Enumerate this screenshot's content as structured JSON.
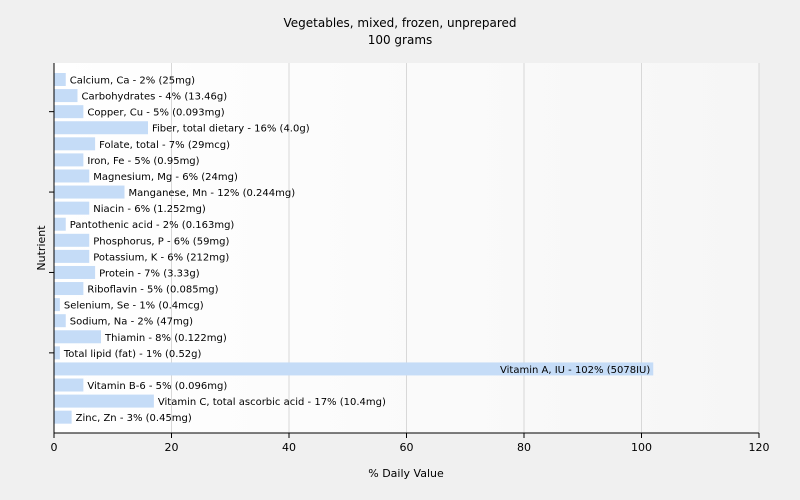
{
  "chart_data": {
    "type": "bar",
    "orientation": "horizontal",
    "title": "Vegetables, mixed, frozen, unprepared",
    "subtitle": "100 grams",
    "xlabel": "% Daily Value",
    "ylabel": "Nutrient",
    "xlim": [
      0,
      120
    ],
    "xticks": [
      0,
      20,
      40,
      60,
      80,
      100,
      120
    ],
    "grid": true,
    "colors": {
      "bar": "#c5dcf7",
      "grid": "#d8d8d8",
      "axis": "#000000",
      "plot_bg": "#ffffff"
    },
    "categories": [
      "Calcium, Ca",
      "Carbohydrates",
      "Copper, Cu",
      "Fiber, total dietary",
      "Folate, total",
      "Iron, Fe",
      "Magnesium, Mg",
      "Manganese, Mn",
      "Niacin",
      "Pantothenic acid",
      "Phosphorus, P",
      "Potassium, K",
      "Protein",
      "Riboflavin",
      "Selenium, Se",
      "Sodium, Na",
      "Thiamin",
      "Total lipid (fat)",
      "Vitamin A, IU",
      "Vitamin B-6",
      "Vitamin C, total ascorbic acid",
      "Zinc, Zn"
    ],
    "values": [
      2,
      4,
      5,
      16,
      7,
      5,
      6,
      12,
      6,
      2,
      6,
      6,
      7,
      5,
      1,
      2,
      8,
      1,
      102,
      5,
      17,
      3
    ],
    "labels": [
      "Calcium, Ca - 2% (25mg)",
      "Carbohydrates - 4% (13.46g)",
      "Copper, Cu - 5% (0.093mg)",
      "Fiber, total dietary - 16% (4.0g)",
      "Folate, total - 7% (29mcg)",
      "Iron, Fe - 5% (0.95mg)",
      "Magnesium, Mg - 6% (24mg)",
      "Manganese, Mn - 12% (0.244mg)",
      "Niacin - 6% (1.252mg)",
      "Pantothenic acid - 2% (0.163mg)",
      "Phosphorus, P - 6% (59mg)",
      "Potassium, K - 6% (212mg)",
      "Protein - 7% (3.33g)",
      "Riboflavin - 5% (0.085mg)",
      "Selenium, Se - 1% (0.4mcg)",
      "Sodium, Na - 2% (47mg)",
      "Thiamin - 8% (0.122mg)",
      "Total lipid (fat) - 1% (0.52g)",
      "Vitamin A, IU - 102% (5078IU)",
      "Vitamin B-6 - 5% (0.096mg)",
      "Vitamin C, total ascorbic acid - 17% (10.4mg)",
      "Zinc, Zn - 3% (0.45mg)"
    ]
  }
}
